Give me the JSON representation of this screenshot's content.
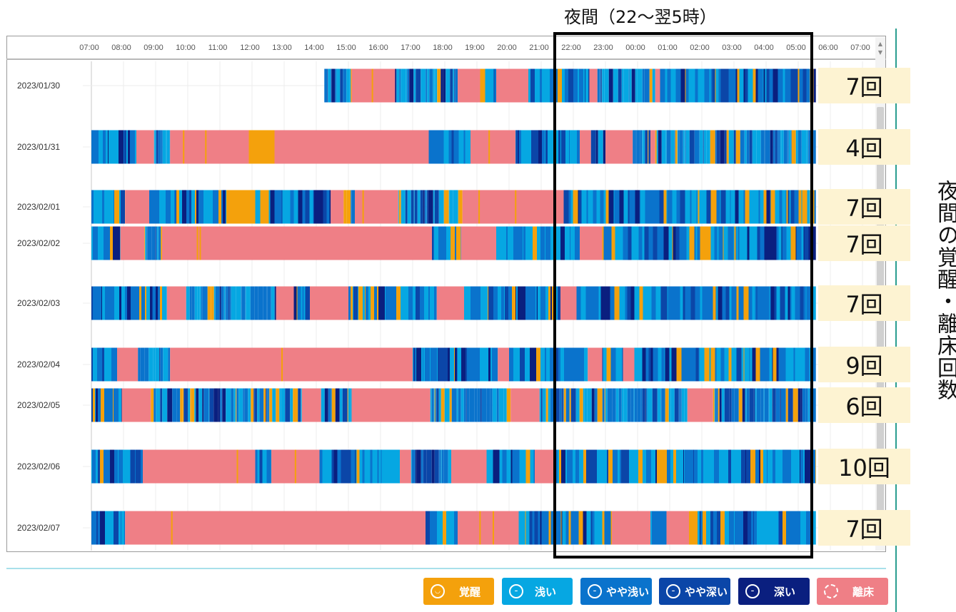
{
  "title": "夜間（22～翌5時）",
  "side_label": "夜間の覚醒・離床回数",
  "colors": {
    "awake": "#f4a10c",
    "light": "#06a7e2",
    "slightly_light": "#0a73cc",
    "slightly_deep": "#0b46a8",
    "deep": "#0a1f7f",
    "out_of_bed": "#ef7f86"
  },
  "legend": [
    {
      "key": "awake",
      "label": "覚醒",
      "icon": "smile-icon",
      "color": "#f4a10c"
    },
    {
      "key": "light",
      "label": "浅い",
      "icon": "calm-face-icon",
      "color": "#06a7e2"
    },
    {
      "key": "slightly_light",
      "label": "やや浅い",
      "icon": "calm-face-icon",
      "color": "#0a73cc"
    },
    {
      "key": "slightly_deep",
      "label": "やや深い",
      "icon": "calm-face-icon",
      "color": "#0b46a8"
    },
    {
      "key": "deep",
      "label": "深い",
      "icon": "calm-face-icon",
      "color": "#0a1f7f"
    },
    {
      "key": "out_of_bed",
      "label": "離床",
      "icon": "dashed-circle-icon",
      "color": "#ef7f86"
    }
  ],
  "chart_data": {
    "type": "timeline",
    "x_ticks": [
      "07:00",
      "08:00",
      "09:00",
      "10:00",
      "11:00",
      "12:00",
      "13:00",
      "14:00",
      "15:00",
      "16:00",
      "17:00",
      "18:00",
      "19:00",
      "20:00",
      "21:00",
      "22:00",
      "23:00",
      "00:00",
      "01:00",
      "02:00",
      "03:00",
      "04:00",
      "05:00",
      "06:00",
      "07:00"
    ],
    "x_range_hours": [
      0,
      24
    ],
    "night_window": [
      "22:00",
      "05:00"
    ],
    "rows": [
      {
        "date": "2023/01/30",
        "count": "7回",
        "segments": [
          [
            7.25,
            8.1,
            "sleep"
          ],
          [
            8.1,
            9.45,
            "out_of_bed"
          ],
          [
            9.45,
            11.4,
            "sleep"
          ],
          [
            11.4,
            12.1,
            "out_of_bed"
          ],
          [
            12.1,
            12.6,
            "sleep"
          ],
          [
            12.6,
            13.6,
            "out_of_bed"
          ],
          [
            13.6,
            15.5,
            "sleep"
          ],
          [
            15.5,
            15.75,
            "out_of_bed"
          ],
          [
            15.75,
            17.55,
            "sleep"
          ],
          [
            17.55,
            17.7,
            "out_of_bed"
          ],
          [
            17.7,
            22.55,
            "sleep"
          ]
        ]
      },
      {
        "date": "2023/01/31",
        "count": "4回",
        "segments": [
          [
            0,
            1.4,
            "sleep"
          ],
          [
            1.4,
            1.95,
            "out_of_bed"
          ],
          [
            1.95,
            2.45,
            "sleep"
          ],
          [
            2.45,
            4.9,
            "out_of_bed"
          ],
          [
            4.9,
            5.7,
            "awake"
          ],
          [
            5.7,
            10.5,
            "out_of_bed"
          ],
          [
            10.5,
            11.8,
            "sleep"
          ],
          [
            11.8,
            13.2,
            "out_of_bed"
          ],
          [
            13.2,
            15.2,
            "sleep"
          ],
          [
            15.2,
            15.55,
            "out_of_bed"
          ],
          [
            15.55,
            16.0,
            "sleep"
          ],
          [
            16.0,
            16.85,
            "out_of_bed"
          ],
          [
            16.85,
            17.4,
            "sleep"
          ],
          [
            17.4,
            17.55,
            "out_of_bed"
          ],
          [
            17.55,
            22.55,
            "sleep"
          ]
        ]
      },
      {
        "date": "2023/02/01",
        "count": "7回",
        "segments": [
          [
            0,
            1.05,
            "sleep"
          ],
          [
            1.05,
            1.8,
            "out_of_bed"
          ],
          [
            1.8,
            4.2,
            "sleep"
          ],
          [
            4.2,
            5.1,
            "awake"
          ],
          [
            5.1,
            7.45,
            "sleep"
          ],
          [
            7.45,
            7.85,
            "out_of_bed"
          ],
          [
            7.85,
            8.2,
            "sleep"
          ],
          [
            8.2,
            9.55,
            "out_of_bed"
          ],
          [
            9.55,
            11.55,
            "sleep"
          ],
          [
            11.55,
            14.7,
            "out_of_bed"
          ],
          [
            14.7,
            22.55,
            "sleep"
          ]
        ]
      },
      {
        "date": "2023/02/02",
        "count": "7回",
        "segments": [
          [
            0,
            0.9,
            "sleep"
          ],
          [
            0.9,
            1.65,
            "out_of_bed"
          ],
          [
            1.65,
            2.2,
            "sleep"
          ],
          [
            2.2,
            10.6,
            "out_of_bed"
          ],
          [
            10.6,
            11.5,
            "sleep"
          ],
          [
            11.5,
            12.6,
            "out_of_bed"
          ],
          [
            12.6,
            15.2,
            "sleep"
          ],
          [
            15.2,
            15.9,
            "out_of_bed"
          ],
          [
            15.9,
            22.55,
            "sleep"
          ]
        ]
      },
      {
        "date": "2023/02/03",
        "count": "7回",
        "segments": [
          [
            0,
            2.35,
            "sleep"
          ],
          [
            2.35,
            2.95,
            "out_of_bed"
          ],
          [
            2.95,
            5.75,
            "sleep"
          ],
          [
            5.75,
            6.3,
            "out_of_bed"
          ],
          [
            6.3,
            6.8,
            "sleep"
          ],
          [
            6.8,
            8.0,
            "out_of_bed"
          ],
          [
            8.0,
            10.75,
            "sleep"
          ],
          [
            10.75,
            11.6,
            "out_of_bed"
          ],
          [
            11.6,
            14.6,
            "sleep"
          ],
          [
            14.6,
            15.1,
            "out_of_bed"
          ],
          [
            15.1,
            22.55,
            "sleep"
          ]
        ]
      },
      {
        "date": "2023/02/04",
        "count": "9回",
        "segments": [
          [
            0,
            0.8,
            "sleep"
          ],
          [
            0.8,
            1.45,
            "out_of_bed"
          ],
          [
            1.45,
            2.45,
            "sleep"
          ],
          [
            2.45,
            10.0,
            "out_of_bed"
          ],
          [
            10.0,
            12.65,
            "sleep"
          ],
          [
            12.65,
            13.0,
            "out_of_bed"
          ],
          [
            13.0,
            15.45,
            "sleep"
          ],
          [
            15.45,
            15.9,
            "out_of_bed"
          ],
          [
            15.9,
            16.55,
            "sleep"
          ],
          [
            16.55,
            16.9,
            "out_of_bed"
          ],
          [
            16.9,
            22.55,
            "sleep"
          ]
        ]
      },
      {
        "date": "2023/02/05",
        "count": "6回",
        "segments": [
          [
            0,
            0.95,
            "sleep"
          ],
          [
            0.95,
            1.85,
            "out_of_bed"
          ],
          [
            1.85,
            6.55,
            "sleep"
          ],
          [
            6.55,
            7.15,
            "out_of_bed"
          ],
          [
            7.15,
            8.1,
            "sleep"
          ],
          [
            8.1,
            10.55,
            "out_of_bed"
          ],
          [
            10.55,
            13.05,
            "sleep"
          ],
          [
            13.05,
            13.95,
            "out_of_bed"
          ],
          [
            13.95,
            18.55,
            "sleep"
          ],
          [
            18.55,
            19.35,
            "out_of_bed"
          ],
          [
            19.35,
            22.55,
            "sleep"
          ]
        ]
      },
      {
        "date": "2023/02/06",
        "count": "10回",
        "segments": [
          [
            0,
            1.6,
            "sleep"
          ],
          [
            1.6,
            5.1,
            "out_of_bed"
          ],
          [
            5.1,
            5.6,
            "sleep"
          ],
          [
            5.6,
            7.1,
            "out_of_bed"
          ],
          [
            7.1,
            9.6,
            "sleep"
          ],
          [
            9.6,
            9.95,
            "out_of_bed"
          ],
          [
            9.95,
            11.2,
            "sleep"
          ],
          [
            11.2,
            12.3,
            "out_of_bed"
          ],
          [
            12.3,
            13.8,
            "sleep"
          ],
          [
            13.8,
            14.4,
            "out_of_bed"
          ],
          [
            14.4,
            22.55,
            "sleep"
          ]
        ]
      },
      {
        "date": "2023/02/07",
        "count": "7回",
        "segments": [
          [
            0,
            1.05,
            "sleep"
          ],
          [
            1.05,
            10.4,
            "out_of_bed"
          ],
          [
            10.4,
            11.4,
            "sleep"
          ],
          [
            11.4,
            13.3,
            "out_of_bed"
          ],
          [
            13.3,
            16.2,
            "sleep"
          ],
          [
            16.2,
            17.4,
            "out_of_bed"
          ],
          [
            17.4,
            17.9,
            "sleep"
          ],
          [
            17.9,
            18.6,
            "out_of_bed"
          ],
          [
            18.6,
            22.55,
            "sleep"
          ]
        ]
      }
    ]
  }
}
